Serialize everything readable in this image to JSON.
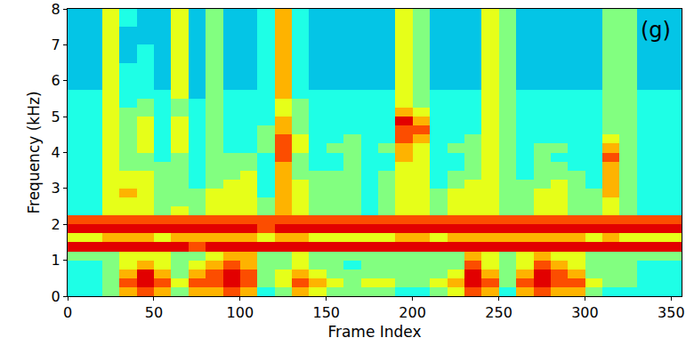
{
  "chart_data": {
    "type": "heatmap",
    "x_label": "Frame Index",
    "y_label": "Frequency (kHz)",
    "annotations": [
      {
        "text": "(g)"
      }
    ],
    "xlim": [
      0,
      356
    ],
    "ylim": [
      0,
      8
    ],
    "xticks": [
      0,
      50,
      100,
      150,
      200,
      250,
      300,
      350
    ],
    "yticks": [
      0,
      1,
      2,
      3,
      4,
      5,
      6,
      7,
      8
    ],
    "zlim": [
      0,
      10
    ],
    "color": "Jet",
    "x": [
      5,
      15,
      25,
      35,
      45,
      55,
      65,
      75,
      85,
      95,
      105,
      115,
      125,
      135,
      145,
      155,
      165,
      175,
      185,
      195,
      205,
      215,
      225,
      235,
      245,
      255,
      265,
      275,
      285,
      295,
      305,
      315,
      325,
      335,
      345,
      355
    ],
    "y": [
      0.125,
      0.375,
      0.625,
      0.875,
      1.125,
      1.375,
      1.625,
      1.875,
      2.125,
      2.375,
      2.625,
      2.875,
      3.125,
      3.375,
      3.625,
      3.875,
      4.125,
      4.375,
      4.625,
      4.875,
      5.125,
      5.375,
      5.625,
      5.875,
      6.125,
      6.375,
      6.625,
      6.875,
      7.125,
      7.375,
      7.625,
      7.875
    ],
    "cells": [
      [
        4,
        4,
        5,
        7,
        8,
        7,
        5,
        7,
        7,
        8,
        7,
        4,
        5,
        7,
        6,
        5,
        5,
        5,
        5,
        4,
        4,
        5,
        6,
        8,
        7,
        4,
        7,
        8,
        7,
        7,
        5,
        4,
        4,
        4,
        4,
        4
      ],
      [
        4,
        4,
        5,
        8,
        9,
        8,
        6,
        8,
        8,
        9,
        8,
        5,
        6,
        8,
        7,
        6,
        5,
        6,
        6,
        5,
        5,
        6,
        7,
        9,
        8,
        5,
        8,
        9,
        8,
        8,
        6,
        5,
        5,
        4,
        4,
        4
      ],
      [
        4,
        4,
        5,
        7,
        9,
        7,
        5,
        7,
        8,
        9,
        8,
        5,
        6,
        7,
        6,
        5,
        5,
        5,
        5,
        5,
        5,
        5,
        6,
        9,
        7,
        5,
        7,
        9,
        8,
        7,
        5,
        5,
        5,
        4,
        4,
        4
      ],
      [
        4,
        4,
        5,
        6,
        7,
        6,
        5,
        6,
        7,
        8,
        7,
        5,
        5,
        6,
        5,
        5,
        4,
        5,
        5,
        5,
        5,
        5,
        5,
        8,
        6,
        5,
        6,
        8,
        7,
        6,
        5,
        5,
        5,
        4,
        4,
        4
      ],
      [
        5,
        5,
        5,
        6,
        6,
        6,
        5,
        5,
        6,
        7,
        7,
        5,
        5,
        6,
        5,
        5,
        5,
        5,
        5,
        5,
        5,
        5,
        5,
        7,
        6,
        5,
        6,
        7,
        6,
        6,
        5,
        5,
        5,
        5,
        5,
        5
      ],
      [
        9,
        9,
        9,
        9,
        9,
        9,
        9,
        8,
        9,
        9,
        9,
        9,
        9,
        9,
        9,
        9,
        9,
        9,
        9,
        9,
        9,
        9,
        9,
        9,
        9,
        9,
        9,
        9,
        9,
        9,
        9,
        9,
        9,
        9,
        9,
        9
      ],
      [
        6,
        6,
        7,
        7,
        7,
        6,
        7,
        7,
        7,
        7,
        7,
        6,
        7,
        7,
        6,
        6,
        6,
        6,
        6,
        7,
        7,
        6,
        7,
        7,
        7,
        7,
        7,
        7,
        7,
        7,
        6,
        7,
        6,
        6,
        6,
        6
      ],
      [
        9,
        9,
        9,
        9,
        9,
        9,
        9,
        9,
        9,
        9,
        9,
        8,
        9,
        9,
        9,
        9,
        9,
        9,
        9,
        9,
        9,
        9,
        9,
        9,
        9,
        9,
        9,
        9,
        9,
        9,
        9,
        9,
        9,
        9,
        9,
        9
      ],
      [
        8,
        8,
        8,
        8,
        8,
        8,
        8,
        8,
        8,
        8,
        8,
        8,
        8,
        8,
        8,
        8,
        8,
        8,
        8,
        8,
        8,
        8,
        8,
        8,
        8,
        8,
        8,
        8,
        8,
        8,
        8,
        8,
        8,
        8,
        8,
        8
      ],
      [
        4,
        4,
        6,
        6,
        6,
        5,
        6,
        5,
        6,
        6,
        6,
        5,
        7,
        6,
        5,
        5,
        5,
        4,
        5,
        6,
        6,
        5,
        6,
        6,
        6,
        5,
        5,
        6,
        6,
        5,
        5,
        6,
        5,
        4,
        4,
        4
      ],
      [
        4,
        4,
        6,
        6,
        6,
        5,
        5,
        5,
        6,
        6,
        6,
        5,
        7,
        6,
        5,
        5,
        5,
        4,
        5,
        6,
        6,
        5,
        6,
        6,
        6,
        5,
        5,
        6,
        6,
        5,
        5,
        6,
        5,
        4,
        4,
        4
      ],
      [
        4,
        4,
        6,
        7,
        6,
        5,
        5,
        5,
        6,
        6,
        6,
        4,
        7,
        6,
        5,
        5,
        5,
        4,
        5,
        6,
        6,
        5,
        6,
        6,
        6,
        5,
        5,
        6,
        6,
        5,
        5,
        7,
        5,
        4,
        4,
        4
      ],
      [
        4,
        4,
        6,
        6,
        6,
        5,
        5,
        4,
        5,
        6,
        6,
        4,
        7,
        6,
        5,
        5,
        5,
        4,
        5,
        6,
        6,
        4,
        5,
        6,
        6,
        5,
        5,
        5,
        6,
        5,
        4,
        7,
        5,
        4,
        4,
        4
      ],
      [
        4,
        4,
        6,
        6,
        6,
        5,
        5,
        4,
        5,
        5,
        6,
        4,
        7,
        5,
        5,
        5,
        5,
        4,
        5,
        6,
        6,
        4,
        5,
        5,
        6,
        5,
        4,
        5,
        5,
        5,
        4,
        7,
        5,
        4,
        4,
        4
      ],
      [
        4,
        4,
        6,
        5,
        5,
        5,
        5,
        4,
        5,
        5,
        5,
        4,
        7,
        5,
        4,
        4,
        5,
        4,
        4,
        6,
        6,
        4,
        4,
        5,
        6,
        5,
        4,
        5,
        5,
        4,
        4,
        7,
        5,
        4,
        4,
        4
      ],
      [
        4,
        4,
        6,
        5,
        5,
        4,
        5,
        4,
        5,
        5,
        5,
        4,
        8,
        5,
        4,
        4,
        5,
        4,
        4,
        7,
        6,
        4,
        4,
        5,
        6,
        5,
        4,
        5,
        4,
        4,
        4,
        8,
        5,
        4,
        4,
        4
      ],
      [
        4,
        4,
        6,
        5,
        6,
        4,
        6,
        4,
        5,
        4,
        4,
        5,
        8,
        6,
        4,
        5,
        5,
        4,
        5,
        7,
        6,
        4,
        5,
        5,
        6,
        5,
        4,
        5,
        5,
        4,
        4,
        7,
        5,
        4,
        4,
        4
      ],
      [
        4,
        4,
        6,
        5,
        6,
        4,
        6,
        4,
        5,
        4,
        4,
        5,
        8,
        6,
        4,
        4,
        5,
        4,
        4,
        8,
        7,
        4,
        4,
        5,
        6,
        5,
        4,
        4,
        4,
        4,
        4,
        6,
        5,
        4,
        4,
        4
      ],
      [
        4,
        4,
        6,
        5,
        6,
        4,
        6,
        4,
        5,
        4,
        4,
        5,
        7,
        5,
        4,
        4,
        4,
        4,
        4,
        8,
        8,
        4,
        4,
        4,
        6,
        5,
        4,
        4,
        4,
        4,
        4,
        5,
        5,
        4,
        4,
        4
      ],
      [
        4,
        4,
        6,
        5,
        6,
        4,
        6,
        4,
        5,
        4,
        4,
        4,
        7,
        5,
        4,
        4,
        4,
        4,
        4,
        9,
        7,
        4,
        4,
        4,
        6,
        5,
        4,
        4,
        4,
        4,
        4,
        5,
        5,
        4,
        4,
        4
      ],
      [
        4,
        4,
        6,
        5,
        5,
        4,
        5,
        4,
        5,
        4,
        4,
        4,
        6,
        5,
        4,
        4,
        4,
        4,
        4,
        7,
        6,
        4,
        4,
        4,
        6,
        5,
        4,
        4,
        4,
        4,
        4,
        5,
        5,
        4,
        4,
        4
      ],
      [
        4,
        4,
        6,
        4,
        5,
        4,
        5,
        4,
        5,
        4,
        4,
        4,
        6,
        5,
        4,
        4,
        4,
        4,
        4,
        6,
        5,
        4,
        4,
        4,
        6,
        5,
        4,
        4,
        4,
        4,
        4,
        5,
        5,
        4,
        4,
        4
      ],
      [
        4,
        4,
        6,
        4,
        4,
        4,
        6,
        3,
        5,
        4,
        4,
        4,
        7,
        4,
        4,
        4,
        4,
        4,
        4,
        6,
        5,
        4,
        4,
        4,
        6,
        5,
        4,
        4,
        4,
        4,
        4,
        5,
        5,
        4,
        4,
        4
      ],
      [
        3,
        3,
        6,
        4,
        4,
        3,
        6,
        3,
        5,
        3,
        3,
        4,
        7,
        4,
        3,
        3,
        3,
        3,
        3,
        6,
        5,
        3,
        3,
        3,
        6,
        5,
        3,
        3,
        3,
        3,
        3,
        5,
        5,
        3,
        3,
        3
      ],
      [
        3,
        3,
        6,
        4,
        4,
        3,
        6,
        3,
        5,
        3,
        3,
        4,
        7,
        4,
        3,
        3,
        3,
        3,
        3,
        6,
        5,
        3,
        3,
        3,
        6,
        5,
        3,
        3,
        3,
        3,
        3,
        5,
        5,
        3,
        3,
        3
      ],
      [
        3,
        3,
        6,
        4,
        4,
        3,
        6,
        3,
        5,
        3,
        3,
        4,
        7,
        4,
        3,
        3,
        3,
        3,
        3,
        6,
        5,
        3,
        3,
        3,
        6,
        5,
        3,
        3,
        3,
        3,
        3,
        5,
        5,
        3,
        3,
        3
      ],
      [
        3,
        3,
        6,
        3,
        4,
        3,
        6,
        3,
        5,
        3,
        3,
        4,
        7,
        4,
        3,
        3,
        3,
        3,
        3,
        6,
        5,
        3,
        3,
        3,
        6,
        5,
        3,
        3,
        3,
        3,
        3,
        5,
        5,
        3,
        3,
        3
      ],
      [
        3,
        3,
        6,
        3,
        4,
        3,
        6,
        3,
        5,
        3,
        3,
        4,
        7,
        4,
        3,
        3,
        3,
        3,
        3,
        6,
        5,
        3,
        3,
        3,
        6,
        5,
        3,
        3,
        3,
        3,
        3,
        5,
        5,
        3,
        3,
        3
      ],
      [
        3,
        3,
        6,
        3,
        3,
        3,
        6,
        3,
        5,
        3,
        3,
        4,
        7,
        4,
        3,
        3,
        3,
        3,
        3,
        6,
        5,
        3,
        3,
        3,
        6,
        5,
        3,
        3,
        3,
        3,
        3,
        5,
        5,
        3,
        3,
        3
      ],
      [
        3,
        3,
        6,
        3,
        3,
        3,
        6,
        3,
        5,
        3,
        3,
        4,
        7,
        4,
        3,
        3,
        3,
        3,
        3,
        6,
        5,
        3,
        3,
        3,
        6,
        5,
        3,
        3,
        3,
        3,
        3,
        5,
        5,
        3,
        3,
        3
      ],
      [
        3,
        3,
        6,
        4,
        3,
        3,
        6,
        3,
        5,
        3,
        3,
        4,
        7,
        4,
        3,
        3,
        3,
        3,
        3,
        6,
        5,
        3,
        3,
        3,
        6,
        5,
        3,
        3,
        3,
        3,
        3,
        5,
        5,
        3,
        3,
        3
      ],
      [
        3,
        3,
        6,
        4,
        3,
        3,
        6,
        3,
        5,
        3,
        3,
        4,
        7,
        4,
        3,
        3,
        3,
        3,
        3,
        6,
        5,
        3,
        3,
        3,
        6,
        5,
        3,
        3,
        3,
        3,
        3,
        5,
        5,
        3,
        3,
        3
      ]
    ]
  }
}
